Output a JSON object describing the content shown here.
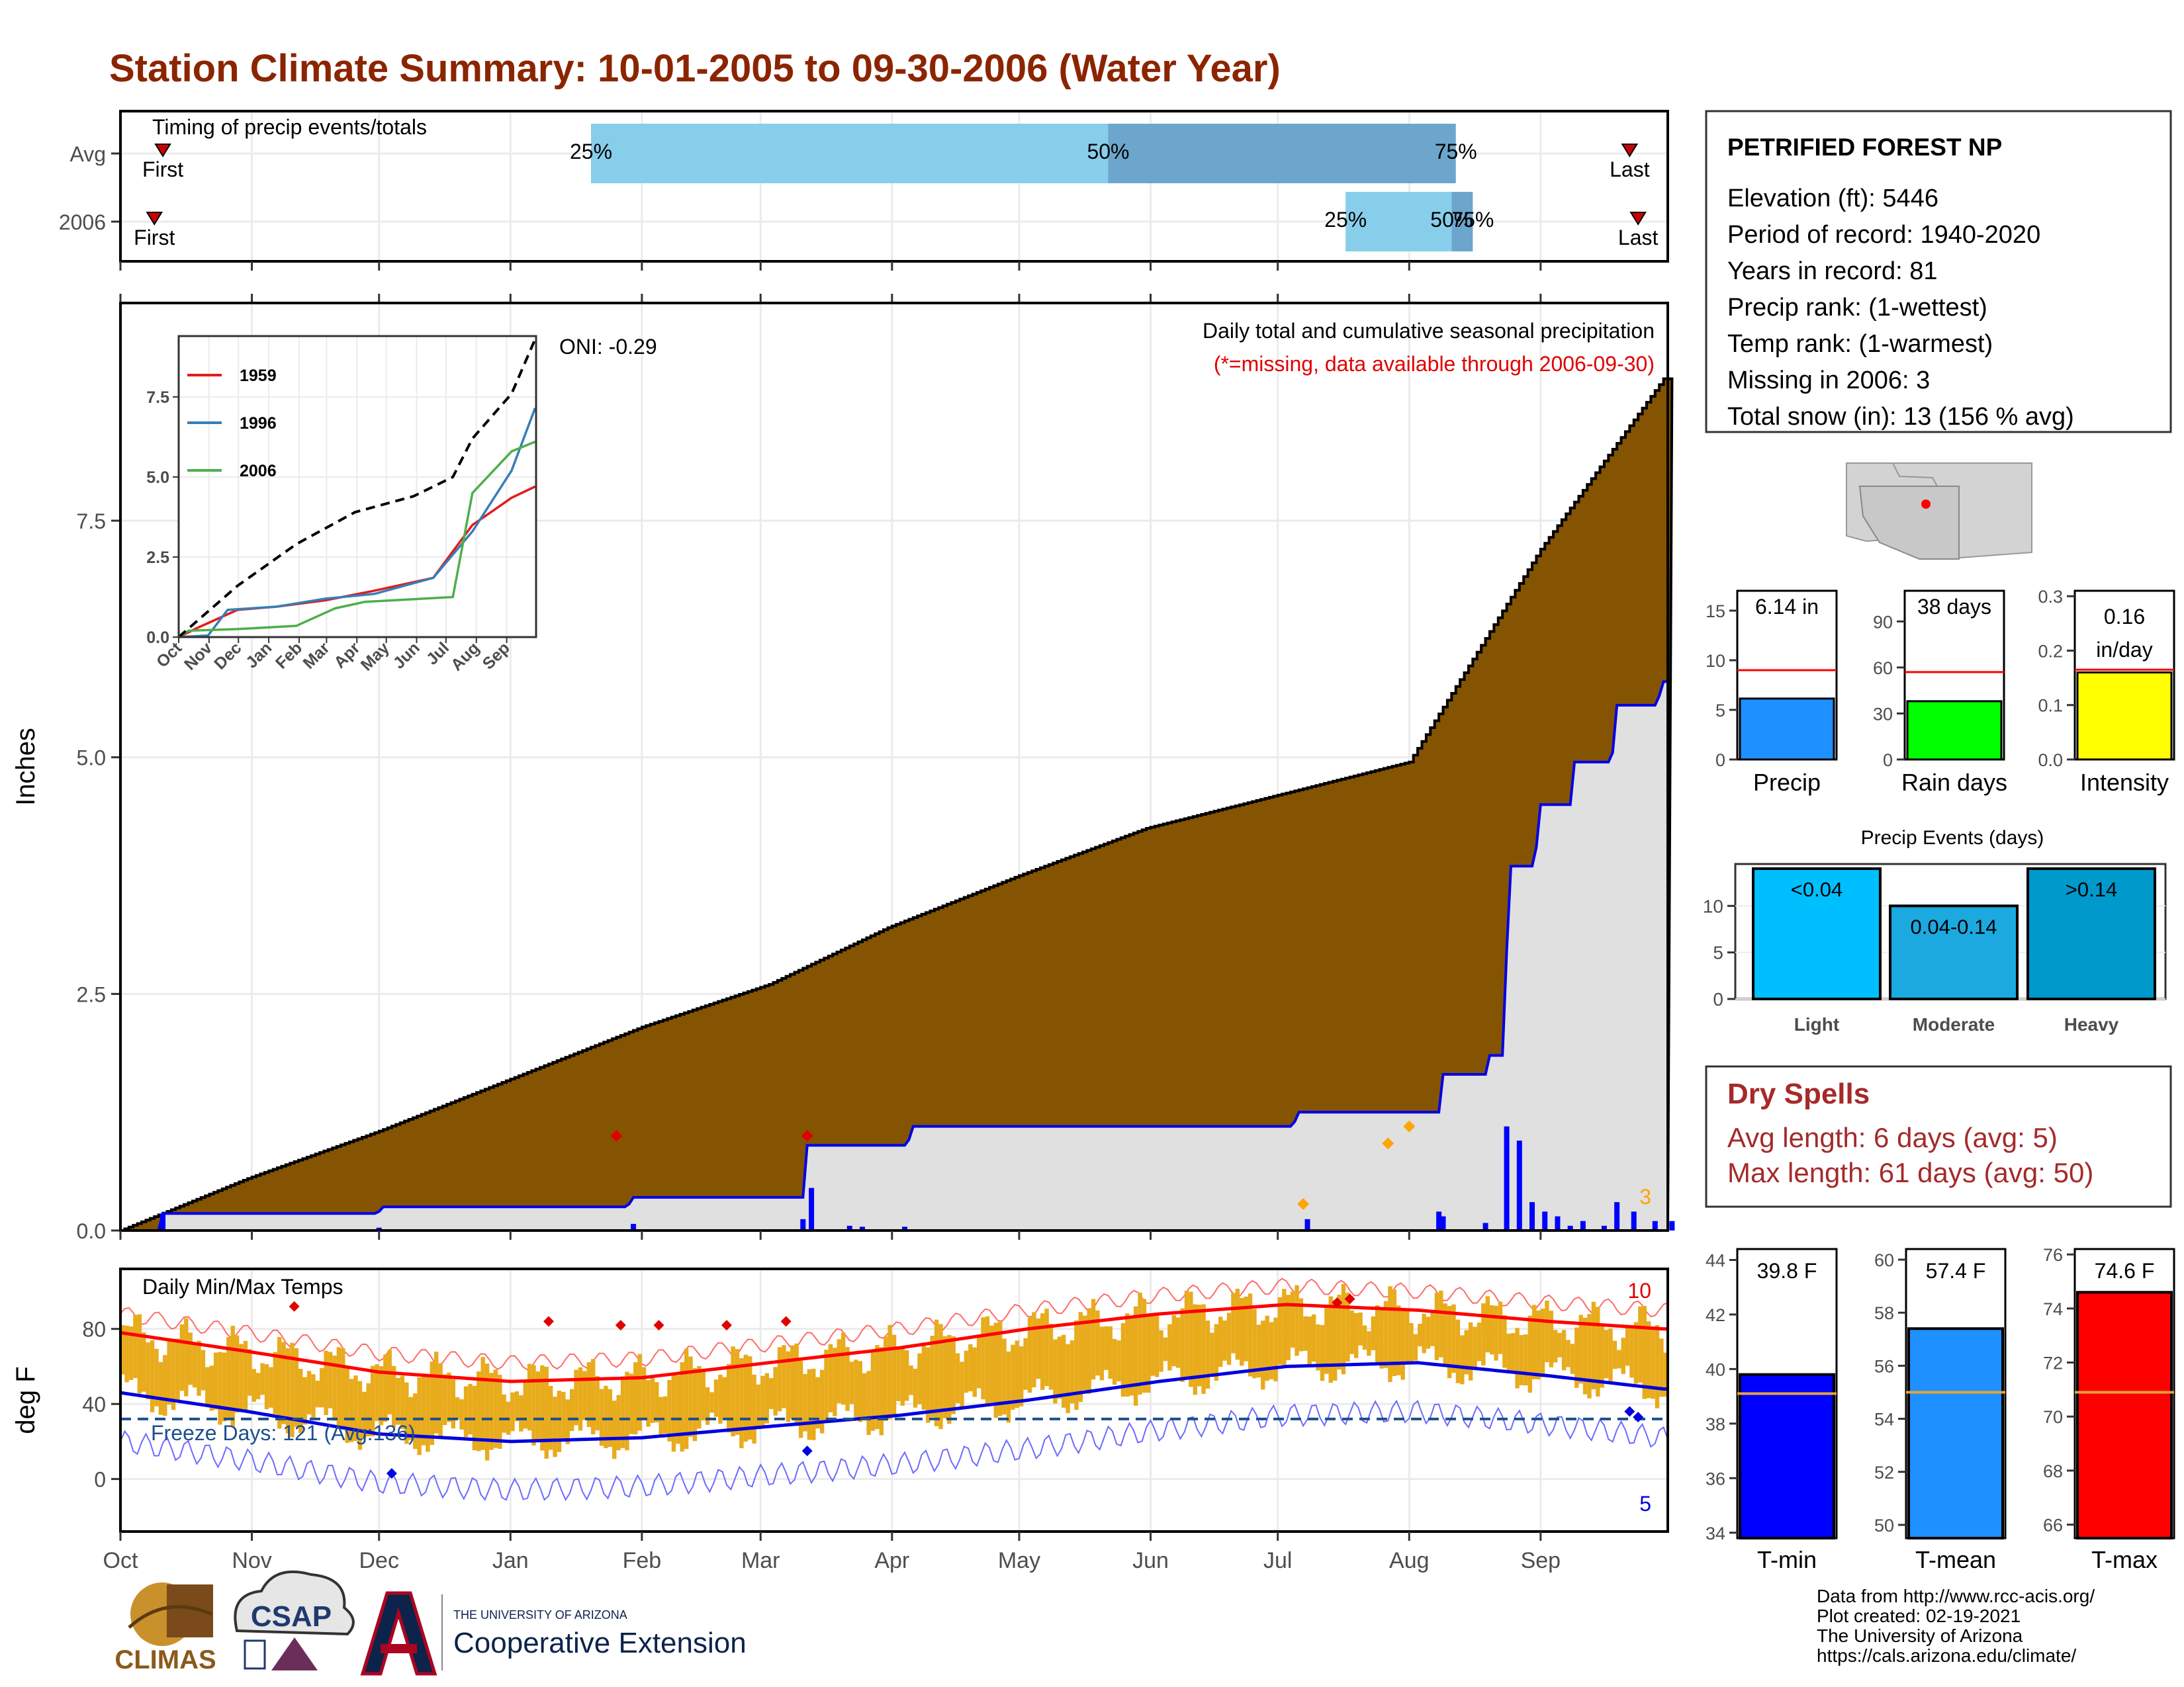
{
  "title": "Station Climate Summary: 10-01-2005 to 09-30-2006 (Water Year)",
  "months": [
    "Oct",
    "Nov",
    "Dec",
    "Jan",
    "Feb",
    "Mar",
    "Apr",
    "May",
    "Jun",
    "Jul",
    "Aug",
    "Sep"
  ],
  "timing": {
    "label": "Timing of precip events/totals",
    "rows": [
      {
        "name": "Avg",
        "first_day": 10,
        "last_day": 356,
        "p25_day": 111,
        "p50_day": 233,
        "p75_day": 315
      },
      {
        "name": "2006",
        "first_day": 8,
        "last_day": 358,
        "p25_day": 289,
        "p50_day": 314,
        "p75_day": 319
      }
    ],
    "first_label": "First",
    "last_label": "Last",
    "pct_labels": [
      "25%",
      "50%",
      "75%"
    ]
  },
  "chart_data": [
    {
      "type": "area",
      "title": "Daily total and cumulative seasonal precipitation",
      "subtitle": "(*=missing, data available through 2006-09-30)",
      "ylabel": "Inches",
      "ylim": [
        0,
        9.8
      ],
      "yticks": [
        0,
        2.5,
        5,
        7.5
      ],
      "ytick_labels": [
        "0.0",
        "2.5",
        "5.0",
        "7.5"
      ],
      "oni_label": "ONI: -0.29",
      "missing_count": "3",
      "series": [
        {
          "name": "Avg cumulative",
          "points": [
            [
              0,
              0
            ],
            [
              30,
              0.55
            ],
            [
              61,
              1.05
            ],
            [
              92,
              1.6
            ],
            [
              123,
              2.15
            ],
            [
              153,
              2.6
            ],
            [
              181,
              3.2
            ],
            [
              212,
              3.75
            ],
            [
              242,
              4.25
            ],
            [
              273,
              4.6
            ],
            [
              304,
              4.95
            ],
            [
              335,
              7.2
            ],
            [
              364,
              9
            ]
          ]
        },
        {
          "name": "2006 cumulative",
          "points": [
            [
              0,
              0
            ],
            [
              9,
              0
            ],
            [
              10,
              0.18
            ],
            [
              61,
              0.2
            ],
            [
              62,
              0.25
            ],
            [
              120,
              0.28
            ],
            [
              121,
              0.35
            ],
            [
              161,
              0.35
            ],
            [
              162,
              0.9
            ],
            [
              186,
              0.96
            ],
            [
              187,
              1.1
            ],
            [
              277,
              1.15
            ],
            [
              278,
              1.25
            ],
            [
              311,
              1.25
            ],
            [
              312,
              1.65
            ],
            [
              322,
              1.65
            ],
            [
              323,
              1.85
            ],
            [
              326,
              1.85
            ],
            [
              327,
              2.95
            ],
            [
              328,
              3.85
            ],
            [
              334,
              4.05
            ],
            [
              335,
              4.5
            ],
            [
              342,
              4.5
            ],
            [
              343,
              4.95
            ],
            [
              352,
              5.05
            ],
            [
              353,
              5.55
            ],
            [
              363,
              5.65
            ],
            [
              364,
              5.8
            ],
            [
              366,
              5.9
            ],
            [
              367,
              6.1
            ]
          ]
        },
        {
          "name": "Daily precip",
          "points": [
            [
              10,
              0.18
            ],
            [
              61,
              0.03
            ],
            [
              121,
              0.07
            ],
            [
              161,
              0.12
            ],
            [
              163,
              0.45
            ],
            [
              172,
              0.05
            ],
            [
              175,
              0.04
            ],
            [
              185,
              0.04
            ],
            [
              280,
              0.12
            ],
            [
              311,
              0.2
            ],
            [
              312,
              0.15
            ],
            [
              322,
              0.08
            ],
            [
              327,
              1.1
            ],
            [
              330,
              0.95
            ],
            [
              333,
              0.3
            ],
            [
              336,
              0.2
            ],
            [
              339,
              0.15
            ],
            [
              342,
              0.05
            ],
            [
              345,
              0.1
            ],
            [
              350,
              0.05
            ],
            [
              353,
              0.3
            ],
            [
              357,
              0.2
            ],
            [
              362,
              0.1
            ],
            [
              366,
              0.1
            ]
          ]
        }
      ],
      "record_markers": [
        [
          117,
          1
        ],
        [
          162,
          1
        ],
        [
          279,
          0.28
        ],
        [
          299,
          0.92
        ],
        [
          304,
          1.1
        ]
      ]
    },
    {
      "type": "line",
      "title": "",
      "categories": [
        "Oct",
        "Nov",
        "Dec",
        "Jan",
        "Feb",
        "Mar",
        "Apr",
        "May",
        "Jun",
        "Jul",
        "Aug",
        "Sep"
      ],
      "ylim": [
        0,
        9.4
      ],
      "yticks": [
        0,
        2.5,
        5,
        7.5
      ],
      "ytick_labels": [
        "0.0",
        "2.5",
        "5.0",
        "7.5"
      ],
      "series": [
        {
          "name": "1959",
          "color": "#e41a1c",
          "points": [
            [
              0,
              0
            ],
            [
              20,
              0.3
            ],
            [
              60,
              0.85
            ],
            [
              100,
              0.95
            ],
            [
              150,
              1.15
            ],
            [
              200,
              1.45
            ],
            [
              260,
              1.85
            ],
            [
              300,
              3.5
            ],
            [
              340,
              4.35
            ],
            [
              364,
              4.7
            ]
          ]
        },
        {
          "name": "1996",
          "color": "#377eb8",
          "points": [
            [
              0,
              0
            ],
            [
              30,
              0.05
            ],
            [
              50,
              0.85
            ],
            [
              100,
              0.95
            ],
            [
              150,
              1.2
            ],
            [
              200,
              1.35
            ],
            [
              260,
              1.85
            ],
            [
              300,
              3.3
            ],
            [
              340,
              5.2
            ],
            [
              364,
              7.15
            ]
          ]
        },
        {
          "name": "2006",
          "color": "#4daf4a",
          "points": [
            [
              0,
              0
            ],
            [
              10,
              0.2
            ],
            [
              60,
              0.25
            ],
            [
              120,
              0.35
            ],
            [
              160,
              0.9
            ],
            [
              190,
              1.1
            ],
            [
              280,
              1.25
            ],
            [
              300,
              4.5
            ],
            [
              340,
              5.8
            ],
            [
              364,
              6.1
            ]
          ]
        },
        {
          "name": "Avg",
          "color": "#000000",
          "points": [
            [
              0,
              0
            ],
            [
              60,
              1.6
            ],
            [
              120,
              2.9
            ],
            [
              180,
              3.9
            ],
            [
              240,
              4.4
            ],
            [
              280,
              5
            ],
            [
              300,
              6.2
            ],
            [
              340,
              7.6
            ],
            [
              364,
              9.3
            ]
          ]
        }
      ]
    },
    {
      "type": "bar",
      "title": "",
      "categories": [
        "Precip"
      ],
      "values": [
        6.14
      ],
      "avg": 9.0,
      "ylim": [
        0,
        17
      ],
      "yticks": [
        0,
        5,
        10,
        15
      ],
      "value_label": "6.14 in",
      "color": "#1e90ff"
    },
    {
      "type": "bar",
      "title": "",
      "categories": [
        "Rain days"
      ],
      "values": [
        38
      ],
      "avg": 57,
      "ylim": [
        0,
        110
      ],
      "yticks": [
        0,
        30,
        60,
        90
      ],
      "value_label": "38 days",
      "color": "#00ff00"
    },
    {
      "type": "bar",
      "title": "",
      "categories": [
        "Intensity"
      ],
      "values": [
        0.16
      ],
      "avg": 0.165,
      "ylim": [
        0,
        0.31
      ],
      "yticks": [
        0,
        0.1,
        0.2,
        0.3
      ],
      "ytick_labels": [
        "0.0",
        "0.1",
        "0.2",
        "0.3"
      ],
      "value_label": [
        "0.16",
        "in/day"
      ],
      "color": "#ffff00"
    },
    {
      "type": "bar",
      "title": "Precip Events (days)",
      "categories": [
        "Light",
        "Moderate",
        "Heavy"
      ],
      "values": [
        14,
        10,
        14
      ],
      "bar_labels": [
        "<0.04",
        "0.04-0.14",
        ">0.14"
      ],
      "colors": [
        "#00bfff",
        "#1ca9e0",
        "#0099cc"
      ],
      "ylim": [
        0,
        14.5
      ],
      "yticks": [
        0,
        5,
        10
      ]
    },
    {
      "type": "area",
      "title": "Daily Min/Max Temps",
      "ylabel": "deg F",
      "ylim": [
        -28,
        112
      ],
      "yticks": [
        0,
        40,
        80
      ],
      "freeze_label": "Freeze Days: 121 (Avg:136)",
      "freeze_line": 32,
      "record_high_count": "10",
      "record_low_count": "5",
      "series": [
        {
          "name": "avg max",
          "points": [
            [
              0,
              78
            ],
            [
              30,
              68
            ],
            [
              61,
              57
            ],
            [
              92,
              52
            ],
            [
              123,
              54
            ],
            [
              153,
              62
            ],
            [
              184,
              70
            ],
            [
              214,
              80
            ],
            [
              245,
              88
            ],
            [
              275,
              93
            ],
            [
              306,
              90
            ],
            [
              337,
              84
            ],
            [
              364,
              80
            ]
          ]
        },
        {
          "name": "avg min",
          "points": [
            [
              0,
              46
            ],
            [
              30,
              36
            ],
            [
              61,
              24
            ],
            [
              92,
              20
            ],
            [
              123,
              22
            ],
            [
              153,
              28
            ],
            [
              184,
              34
            ],
            [
              214,
              42
            ],
            [
              245,
              52
            ],
            [
              275,
              60
            ],
            [
              306,
              62
            ],
            [
              337,
              55
            ],
            [
              364,
              48
            ]
          ]
        }
      ]
    },
    {
      "type": "bar",
      "title": "",
      "categories": [
        "T-min"
      ],
      "values": [
        39.8
      ],
      "avg": 39.1,
      "ylim": [
        33.8,
        44.4
      ],
      "yticks": [
        34,
        36,
        38,
        40,
        42,
        44
      ],
      "value_label": "39.8 F",
      "color": "#0000ff"
    },
    {
      "type": "bar",
      "title": "",
      "categories": [
        "T-mean"
      ],
      "values": [
        57.4
      ],
      "avg": 55,
      "ylim": [
        49.5,
        60.4
      ],
      "yticks": [
        50,
        52,
        54,
        56,
        58,
        60
      ],
      "value_label": "57.4 F",
      "color": "#1e90ff"
    },
    {
      "type": "bar",
      "title": "",
      "categories": [
        "T-max"
      ],
      "values": [
        74.6
      ],
      "avg": 70.9,
      "ylim": [
        65.5,
        76.2
      ],
      "yticks": [
        66,
        68,
        70,
        72,
        74,
        76
      ],
      "value_label": "74.6 F",
      "color": "#ff0000"
    }
  ],
  "station": {
    "name": "PETRIFIED FOREST NP",
    "lines": [
      "Elevation (ft): 5446",
      "Period of record: 1940-2020",
      "Years in record: 81",
      "Precip rank:  (1-wettest)",
      "Temp rank:  (1-warmest)",
      "Missing in 2006: 3",
      "Total snow (in): 13 (156 % avg)"
    ]
  },
  "dry_spells": {
    "title": "Dry Spells",
    "avg": "Avg length: 6 days (avg: 5)",
    "max": "Max length: 61 days (avg: 50)"
  },
  "credits": [
    "Data from http://www.rcc-acis.org/",
    "Plot created: 02-19-2021",
    "The University of Arizona",
    "https://cals.arizona.edu/climate/"
  ],
  "logos": {
    "climas": "CLIMAS",
    "csap": "CSAP",
    "ua_small": "THE UNIVERSITY OF ARIZONA",
    "ua_big": "Cooperative Extension"
  }
}
